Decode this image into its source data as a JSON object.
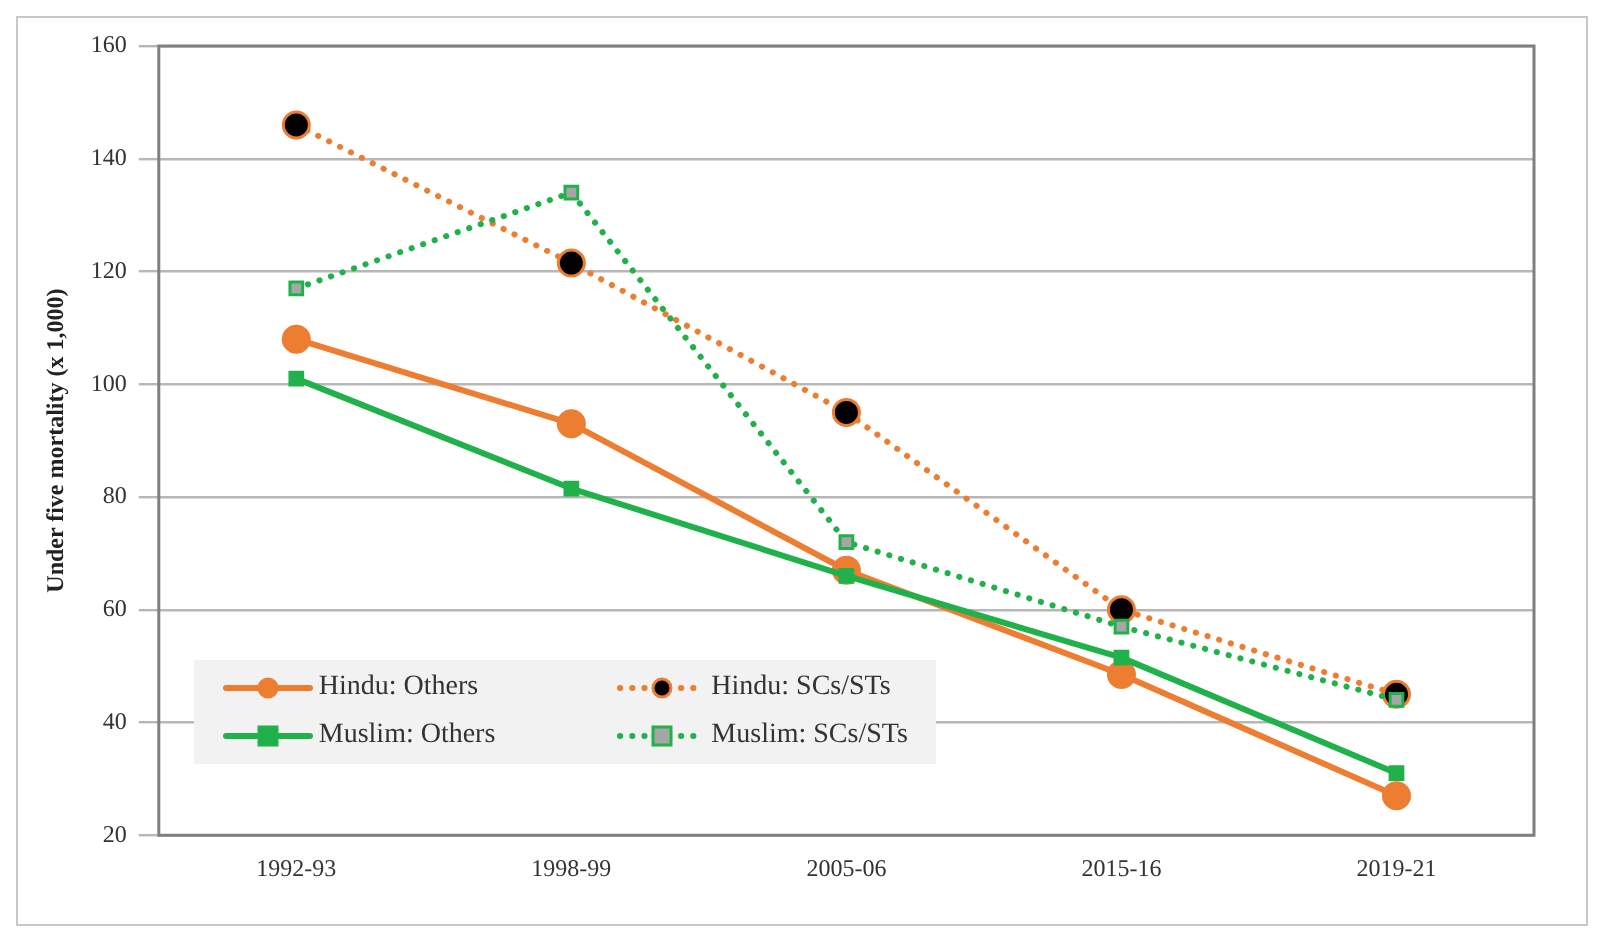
{
  "chart_data": {
    "type": "line",
    "ylabel": "Under five mortality (x 1,000)",
    "categories": [
      "1992-93",
      "1998-99",
      "2005-06",
      "2015-16",
      "2019-21"
    ],
    "series": [
      {
        "name": "Hindu: Others",
        "color": "#ed7d31",
        "marker": "circle",
        "line_style": "solid",
        "values": [
          108,
          93,
          67,
          48.5,
          27
        ]
      },
      {
        "name": "Hindu: SCs/STs",
        "color": "#ed7d31",
        "marker": "circle",
        "line_style": "dotted",
        "values": [
          146,
          121.5,
          95,
          60,
          45
        ]
      },
      {
        "name": "Muslim: Others",
        "color": "#21b14b",
        "marker": "square",
        "line_style": "solid",
        "values": [
          101,
          81.5,
          66,
          51.5,
          31
        ]
      },
      {
        "name": "Muslim: SCs/STs",
        "color": "#21b14b",
        "marker": "square",
        "line_style": "dotted",
        "values": [
          117,
          134,
          72,
          57,
          44
        ]
      }
    ],
    "ylim": [
      20,
      160
    ],
    "yticks": [
      20,
      40,
      60,
      80,
      100,
      120,
      140,
      160
    ],
    "grid": "y",
    "legend": "bottom left"
  }
}
